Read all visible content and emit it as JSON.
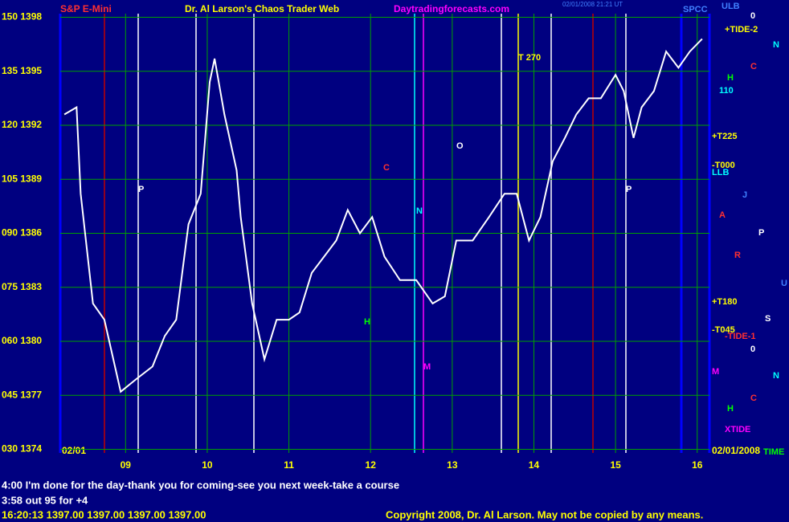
{
  "chart_data": {
    "type": "line",
    "title": "Dr. Al Larson's Chaos Trader Web",
    "symbol": "S&P E-Mini",
    "site": "Daytradingforecasts.com",
    "timestamp": "02/01/2008 21:21 UT",
    "date_left": "02/01",
    "date_right": "02/01/2008",
    "x": [
      8.25,
      8.4,
      8.45,
      8.6,
      8.74,
      8.94,
      9.13,
      9.33,
      9.48,
      9.62,
      9.77,
      9.92,
      10.03,
      10.09,
      10.21,
      10.36,
      10.41,
      10.55,
      10.7,
      10.85,
      11.0,
      11.13,
      11.28,
      11.43,
      11.58,
      11.72,
      11.87,
      12.02,
      12.17,
      12.36,
      12.56,
      12.76,
      12.91,
      13.05,
      13.25,
      13.45,
      13.64,
      13.79,
      13.94,
      14.08,
      14.23,
      14.38,
      14.52,
      14.67,
      14.82,
      15.0,
      15.1,
      15.22,
      15.32,
      15.47,
      15.62,
      15.77,
      15.91,
      16.06
    ],
    "series": [
      {
        "name": "S&P E-Mini",
        "color": "#ffffff",
        "values": [
          1392.6,
          1393.0,
          1388.2,
          1382.1,
          1381.2,
          1377.2,
          1377.9,
          1378.6,
          1380.3,
          1381.2,
          1386.5,
          1388.2,
          1394.4,
          1395.7,
          1392.6,
          1389.5,
          1386.9,
          1382.1,
          1379.0,
          1381.2,
          1381.2,
          1381.6,
          1383.8,
          1384.7,
          1385.6,
          1387.3,
          1386.0,
          1386.9,
          1384.7,
          1383.4,
          1383.4,
          1382.1,
          1382.5,
          1385.6,
          1385.6,
          1386.9,
          1388.2,
          1388.2,
          1385.6,
          1386.9,
          1390.0,
          1391.3,
          1392.6,
          1393.5,
          1393.5,
          1394.8,
          1393.9,
          1391.3,
          1393.0,
          1393.9,
          1396.1,
          1395.2,
          1396.1,
          1396.8
        ]
      }
    ],
    "xlim": [
      8.2,
      16.15
    ],
    "xticks": [
      {
        "value": 9,
        "label": "09"
      },
      10,
      11,
      12,
      13,
      14,
      15,
      16
    ],
    "ylim": [
      1373.8,
      1398.2
    ],
    "yticks": [
      {
        "value": 1398,
        "label": "150 1398"
      },
      {
        "value": 1395,
        "label": "135 1395"
      },
      {
        "value": 1392,
        "label": "120 1392"
      },
      {
        "value": 1389,
        "label": "105 1389"
      },
      {
        "value": 1386,
        "label": "090 1386"
      },
      {
        "value": 1383,
        "label": "075 1383"
      },
      {
        "value": 1380,
        "label": "060 1380"
      },
      {
        "value": 1377,
        "label": "045 1377"
      },
      {
        "value": 1374,
        "label": "030 1374"
      }
    ],
    "grid": true,
    "grid_color": "#00a000",
    "annotations": [
      {
        "text": "ULB",
        "color": "#4080ff"
      },
      {
        "text": "+TIDE-2",
        "color": "#ffff00"
      },
      {
        "text": "H",
        "color": "#00ff00"
      },
      {
        "text": "110",
        "color": "#00ffff"
      },
      {
        "text": "+T225",
        "color": "#ffff00"
      },
      {
        "text": "-T000",
        "color": "#ffff00"
      },
      {
        "text": "LLB",
        "color": "#00ffff"
      },
      {
        "text": "+T180",
        "color": "#ffff00"
      },
      {
        "text": "-T045",
        "color": "#ffff00"
      },
      {
        "text": "-TIDE-1",
        "color": "#ff3030"
      },
      {
        "text": "M",
        "color": "#ff00ff"
      },
      {
        "text": "XTIDE",
        "color": "#ff00ff"
      },
      {
        "text": "TIME",
        "color": "#00ff00"
      },
      {
        "text": "0",
        "color": "#ffffff"
      },
      {
        "text": "N",
        "color": "#00ffff"
      },
      {
        "text": "C",
        "color": "#ff3030"
      },
      {
        "text": "J",
        "color": "#4080ff"
      },
      {
        "text": "A",
        "color": "#ff3030"
      },
      {
        "text": "P",
        "color": "#ffffff"
      },
      {
        "text": "R",
        "color": "#ff3030"
      },
      {
        "text": "U",
        "color": "#4080ff"
      },
      {
        "text": "S",
        "color": "#ffffff"
      },
      {
        "text": "0",
        "color": "#ffffff"
      },
      {
        "text": "N",
        "color": "#00ffff"
      },
      {
        "text": "C",
        "color": "#ff3030"
      },
      {
        "text": "H",
        "color": "#00ff00"
      },
      {
        "text": "T 270",
        "color": "#ffff00"
      },
      {
        "text": "O",
        "color": "#ffffff"
      },
      {
        "text": "P",
        "color": "#ffffff"
      },
      {
        "text": "P",
        "color": "#ffffff"
      },
      {
        "text": "N",
        "color": "#00ffff"
      },
      {
        "text": "H",
        "color": "#00ff00"
      },
      {
        "text": "M",
        "color": "#ff00ff"
      },
      {
        "text": "C",
        "color": "#ff3030"
      },
      {
        "text": "SPCC",
        "color": "#4080ff"
      }
    ]
  },
  "messages": [
    "4:00 I'm done for the day-thank you for coming-see you next week-take a course",
    "3:58 out 95 for +4",
    "16:20:13  1397.00  1397.00  1397.00  1397.00"
  ],
  "copyright": "Copyright 2008, Dr. Al Larson. May not be copied by any means."
}
